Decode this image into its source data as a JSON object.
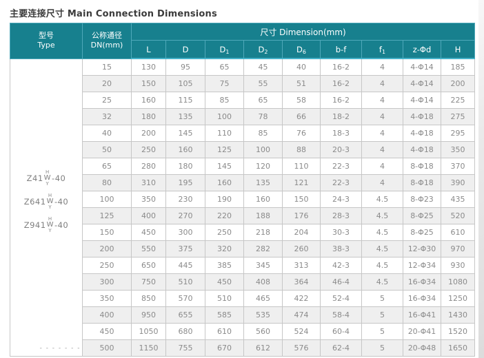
{
  "page": {
    "title": "主要连接尺寸 Main Connection Dimensions"
  },
  "colors": {
    "header_teal": "#17808E",
    "header_border": "#4FA9BA",
    "header_divider": "#45B2C9",
    "row_alt": "#EFEFEF",
    "border_gray": "#C6C6C6",
    "body_text": "#8A8A8A"
  },
  "table": {
    "header": {
      "type_zh": "型号",
      "type_en": "Type",
      "dn_zh": "公称通径",
      "dn_en": "DN(mm)",
      "dimension": "尺寸 Dimension(mm)"
    },
    "dim_columns": [
      {
        "base": "L",
        "sub": ""
      },
      {
        "base": "D",
        "sub": ""
      },
      {
        "base": "D",
        "sub": "1"
      },
      {
        "base": "D",
        "sub": "2"
      },
      {
        "base": "D",
        "sub": "6"
      },
      {
        "base": "b-f",
        "sub": ""
      },
      {
        "base": "f",
        "sub": "1"
      },
      {
        "base": "z-Φd",
        "sub": ""
      },
      {
        "base": "H",
        "sub": ""
      }
    ],
    "type_models": [
      {
        "prefix": "Z41",
        "top": "H",
        "mid": "W",
        "bottom": "Y",
        "suffix": "-40"
      },
      {
        "prefix": "Z641",
        "top": "H",
        "mid": "W",
        "bottom": "Y",
        "suffix": "-40"
      },
      {
        "prefix": "Z941",
        "top": "H",
        "mid": "W",
        "bottom": "Y",
        "suffix": "-40"
      }
    ],
    "type_footer_dashes": "- - - - - - -",
    "rows": [
      [
        "15",
        "130",
        "95",
        "65",
        "45",
        "40",
        "16-2",
        "4",
        "4-Φ14",
        "185"
      ],
      [
        "20",
        "150",
        "105",
        "75",
        "55",
        "51",
        "16-2",
        "4",
        "4-Φ14",
        "200"
      ],
      [
        "25",
        "160",
        "115",
        "85",
        "65",
        "58",
        "16-2",
        "4",
        "4-Φ14",
        "225"
      ],
      [
        "32",
        "180",
        "135",
        "100",
        "78",
        "66",
        "18-2",
        "4",
        "4-Φ18",
        "275"
      ],
      [
        "40",
        "200",
        "145",
        "110",
        "85",
        "76",
        "18-3",
        "4",
        "4-Φ18",
        "295"
      ],
      [
        "50",
        "250",
        "160",
        "125",
        "100",
        "88",
        "20-3",
        "4",
        "4-Φ18",
        "350"
      ],
      [
        "65",
        "280",
        "180",
        "145",
        "120",
        "110",
        "22-3",
        "4",
        "8-Φ18",
        "370"
      ],
      [
        "80",
        "310",
        "195",
        "160",
        "135",
        "121",
        "22-3",
        "4",
        "8-Φ18",
        "390"
      ],
      [
        "100",
        "350",
        "230",
        "190",
        "160",
        "150",
        "24-3",
        "4.5",
        "8-Φ23",
        "435"
      ],
      [
        "125",
        "400",
        "270",
        "220",
        "188",
        "176",
        "28-3",
        "4.5",
        "8-Φ25",
        "520"
      ],
      [
        "150",
        "450",
        "300",
        "250",
        "218",
        "204",
        "30-3",
        "4.5",
        "8-Φ25",
        "610"
      ],
      [
        "200",
        "550",
        "375",
        "320",
        "282",
        "260",
        "38-3",
        "4.5",
        "12-Φ30",
        "970"
      ],
      [
        "250",
        "650",
        "445",
        "385",
        "345",
        "313",
        "42-3",
        "4.5",
        "12-Φ34",
        "930"
      ],
      [
        "300",
        "750",
        "510",
        "450",
        "408",
        "364",
        "46-4",
        "4.5",
        "16-Φ34",
        "1080"
      ],
      [
        "350",
        "850",
        "570",
        "510",
        "465",
        "422",
        "52-4",
        "5",
        "16-Φ34",
        "1250"
      ],
      [
        "400",
        "950",
        "655",
        "585",
        "535",
        "474",
        "58-4",
        "5",
        "16-Φ41",
        "1430"
      ],
      [
        "450",
        "1050",
        "680",
        "610",
        "560",
        "524",
        "60-4",
        "5",
        "20-Φ41",
        "1520"
      ],
      [
        "500",
        "1150",
        "755",
        "670",
        "612",
        "576",
        "62-4",
        "5",
        "20-Φ48",
        "1650"
      ]
    ]
  }
}
